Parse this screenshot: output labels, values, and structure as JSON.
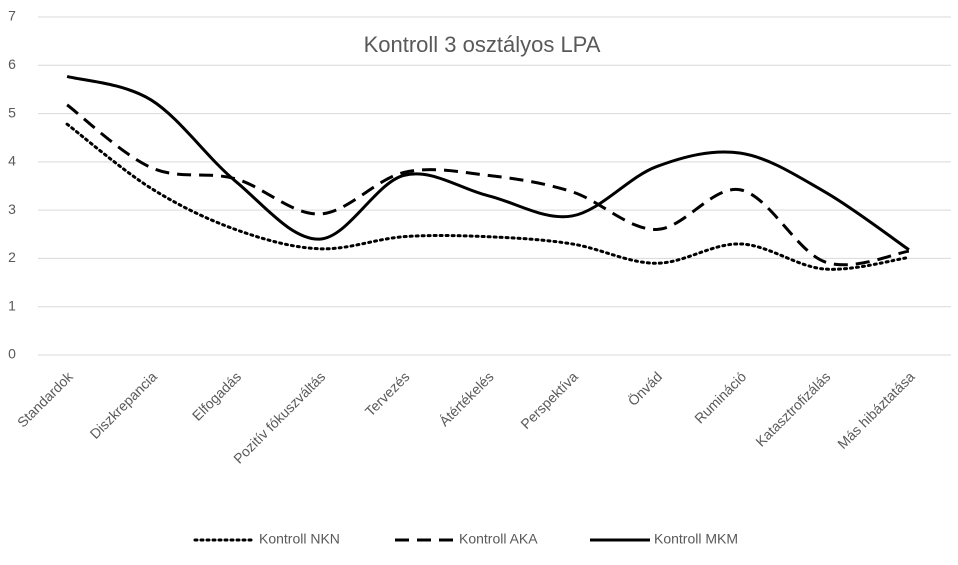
{
  "chart_data": {
    "type": "line",
    "title": "Kontroll 3 osztályos LPA",
    "categories": [
      "Standardok",
      "Diszkrepancia",
      "Elfogadás",
      "Pozitív fókuszváltás",
      "Tervezés",
      "Átértékelés",
      "Perspektíva",
      "Önvád",
      "Rumináció",
      "Katasztrofizálás",
      "Más hibáztatása"
    ],
    "series": [
      {
        "name": "Kontroll NKN",
        "color": "#000000",
        "dash": "dotted",
        "values": [
          4.78,
          3.45,
          2.6,
          2.2,
          2.45,
          2.45,
          2.3,
          1.9,
          2.3,
          1.78,
          2.02
        ]
      },
      {
        "name": "Kontroll AKA",
        "color": "#000000",
        "dash": "dashed",
        "values": [
          5.18,
          3.88,
          3.65,
          2.92,
          3.78,
          3.72,
          3.38,
          2.6,
          3.42,
          1.93,
          2.15
        ]
      },
      {
        "name": "Kontroll MKM",
        "color": "#000000",
        "dash": "solid",
        "values": [
          5.77,
          5.28,
          3.6,
          2.4,
          3.72,
          3.3,
          2.88,
          3.9,
          4.18,
          3.38,
          2.18
        ]
      }
    ],
    "ylim": [
      0,
      7
    ],
    "yticks": [
      0,
      1,
      2,
      3,
      4,
      5,
      6,
      7
    ],
    "grid": true,
    "smooth": true,
    "legend": "bottom"
  }
}
